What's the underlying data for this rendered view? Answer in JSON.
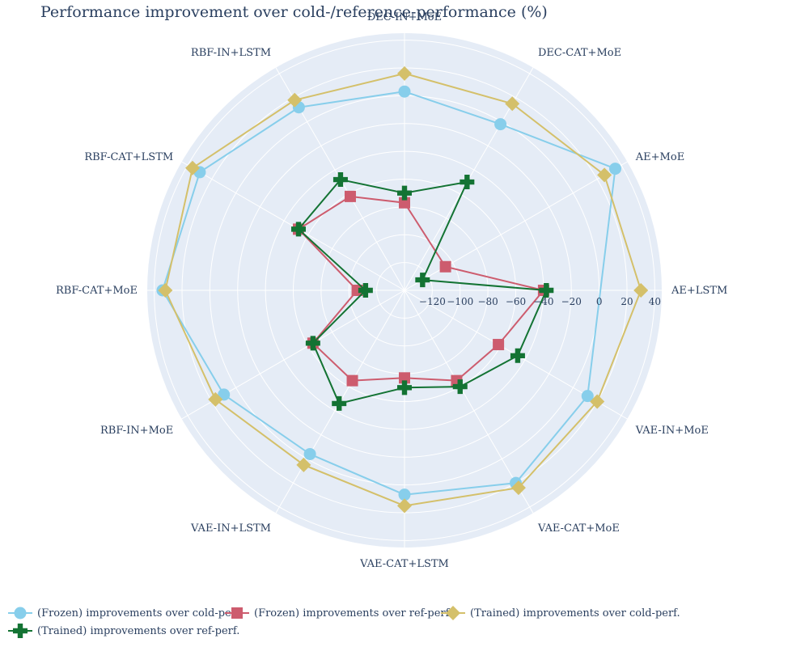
{
  "chart_data": {
    "type": "radar",
    "title": "Performance improvement over cold-/reference-performance (%)",
    "categories": [
      "AE+LSTM",
      "AE+MoE",
      "DEC-CAT+MoE",
      "DEC-IN+MoE",
      "RBF-IN+LSTM",
      "RBF-CAT+LSTM",
      "RBF-CAT+MoE",
      "RBF-IN+MoE",
      "VAE-IN+LSTM",
      "VAE-CAT+LSTM",
      "VAE-CAT+MoE",
      "VAE-IN+MoE"
    ],
    "radial_range": [
      -140,
      45
    ],
    "radial_ticks": [
      -120,
      -100,
      -80,
      -60,
      -40,
      -20,
      0,
      20,
      40
    ],
    "grid": true,
    "legend_position": "bottom",
    "series": [
      {
        "name": "(Frozen) improvements over cold-perf.",
        "color": "#87ceeb",
        "marker": "circle",
        "values": [
          null,
          35,
          -2,
          3,
          12,
          30,
          34,
          10,
          -4,
          7,
          20,
          12
        ]
      },
      {
        "name": "(Frozen) improvements over ref-perf.",
        "color": "#cd5c6e",
        "marker": "square",
        "values": [
          -40,
          -106,
          null,
          -77,
          -62,
          -52,
          -106,
          -64,
          -65,
          -77,
          -65,
          -62
        ]
      },
      {
        "name": "(Trained) improvements over cold-perf.",
        "color": "#d4c06a",
        "marker": "diamond",
        "values": [
          30,
          26,
          15,
          16,
          18,
          36,
          32,
          17,
          5,
          15,
          24,
          20
        ]
      },
      {
        "name": "(Trained) improvements over ref-perf.",
        "color": "#137333",
        "marker": "cross",
        "values": [
          -38,
          -125,
          -50,
          -70,
          -48,
          -52,
          -112,
          -64,
          -46,
          -70,
          -60,
          -46
        ]
      }
    ]
  }
}
